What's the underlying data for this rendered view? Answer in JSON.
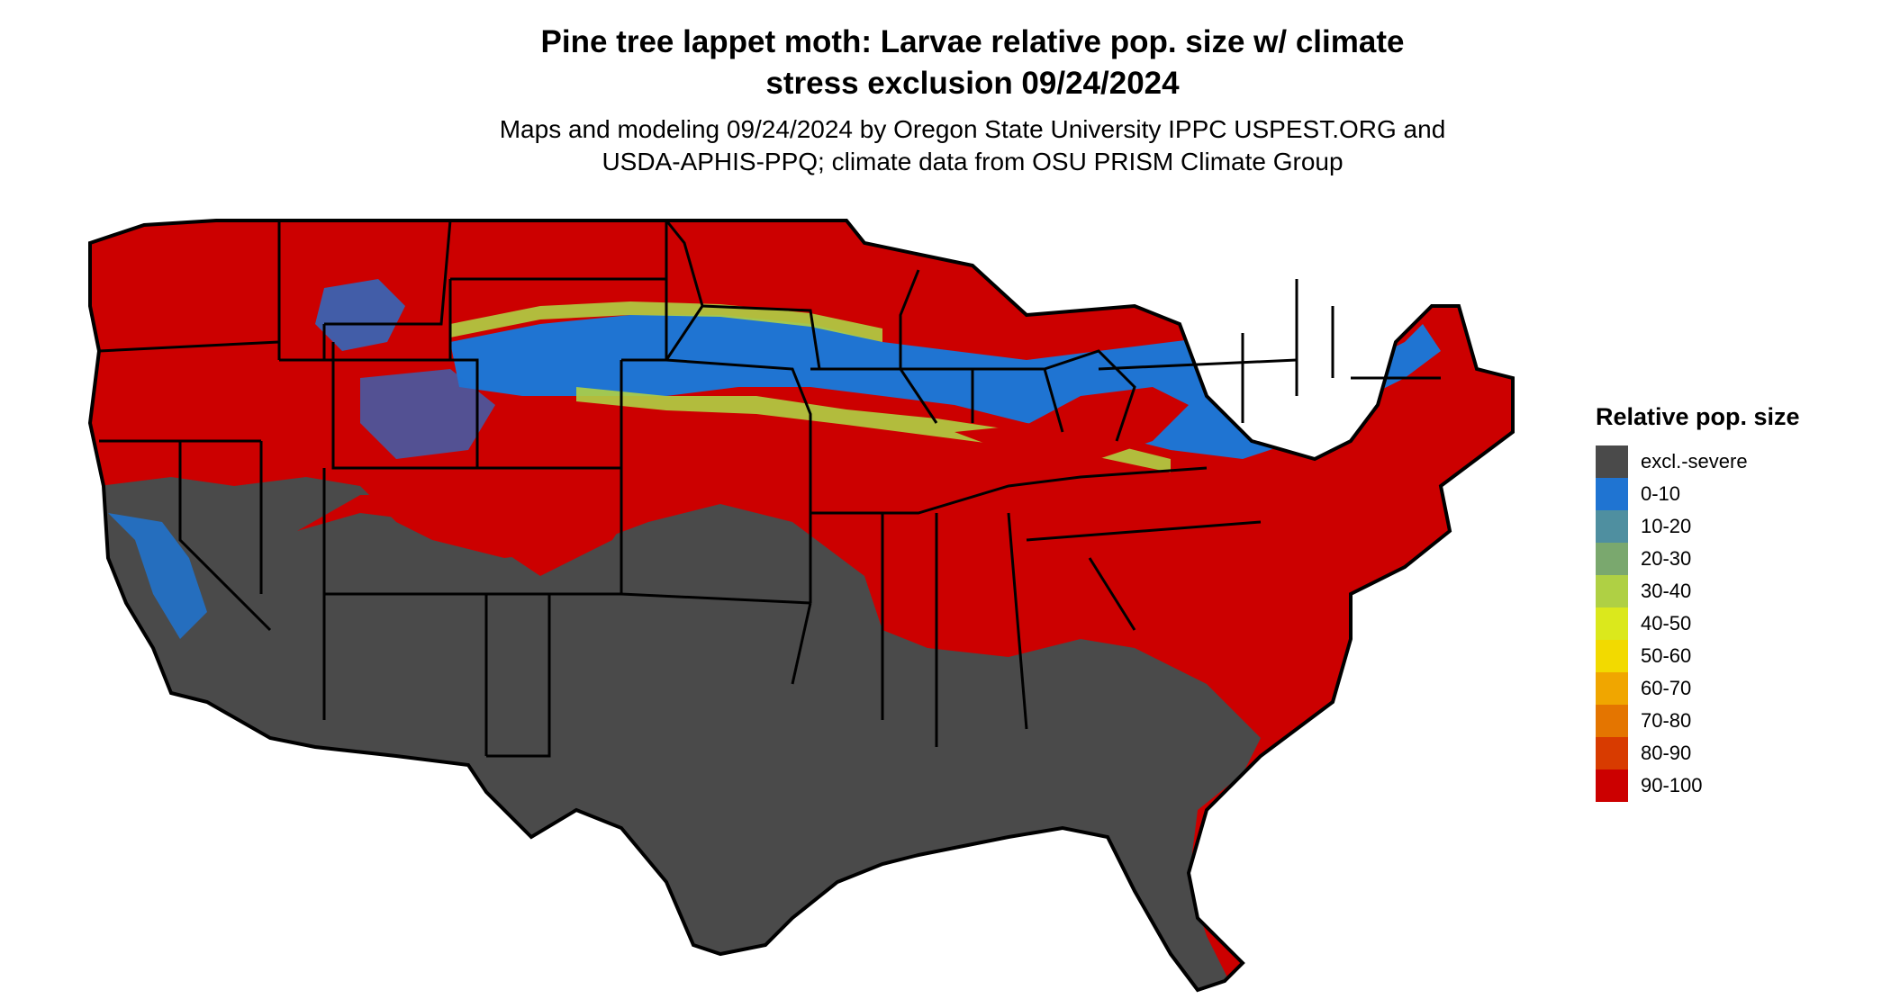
{
  "title_line1": "Pine tree lappet moth: Larvae relative pop. size w/ climate",
  "title_line2": "stress exclusion 09/24/2024",
  "subtitle_line1": "Maps and modeling 09/24/2024 by Oregon State University IPPC USPEST.ORG and",
  "subtitle_line2": "USDA-APHIS-PPQ; climate data from OSU PRISM Climate Group",
  "legend": {
    "title": "Relative pop. size",
    "items": [
      {
        "label": "excl.-severe",
        "color": "#4a4a4a"
      },
      {
        "label": "0-10",
        "color": "#1f74d2"
      },
      {
        "label": "10-20",
        "color": "#4f8fa0"
      },
      {
        "label": "20-30",
        "color": "#7aa86e"
      },
      {
        "label": "30-40",
        "color": "#afd044"
      },
      {
        "label": "40-50",
        "color": "#dbe81c"
      },
      {
        "label": "50-60",
        "color": "#f2da00"
      },
      {
        "label": "60-70",
        "color": "#f0a600"
      },
      {
        "label": "70-80",
        "color": "#e47500"
      },
      {
        "label": "80-90",
        "color": "#d83b00"
      },
      {
        "label": "90-100",
        "color": "#cc0000"
      }
    ]
  }
}
